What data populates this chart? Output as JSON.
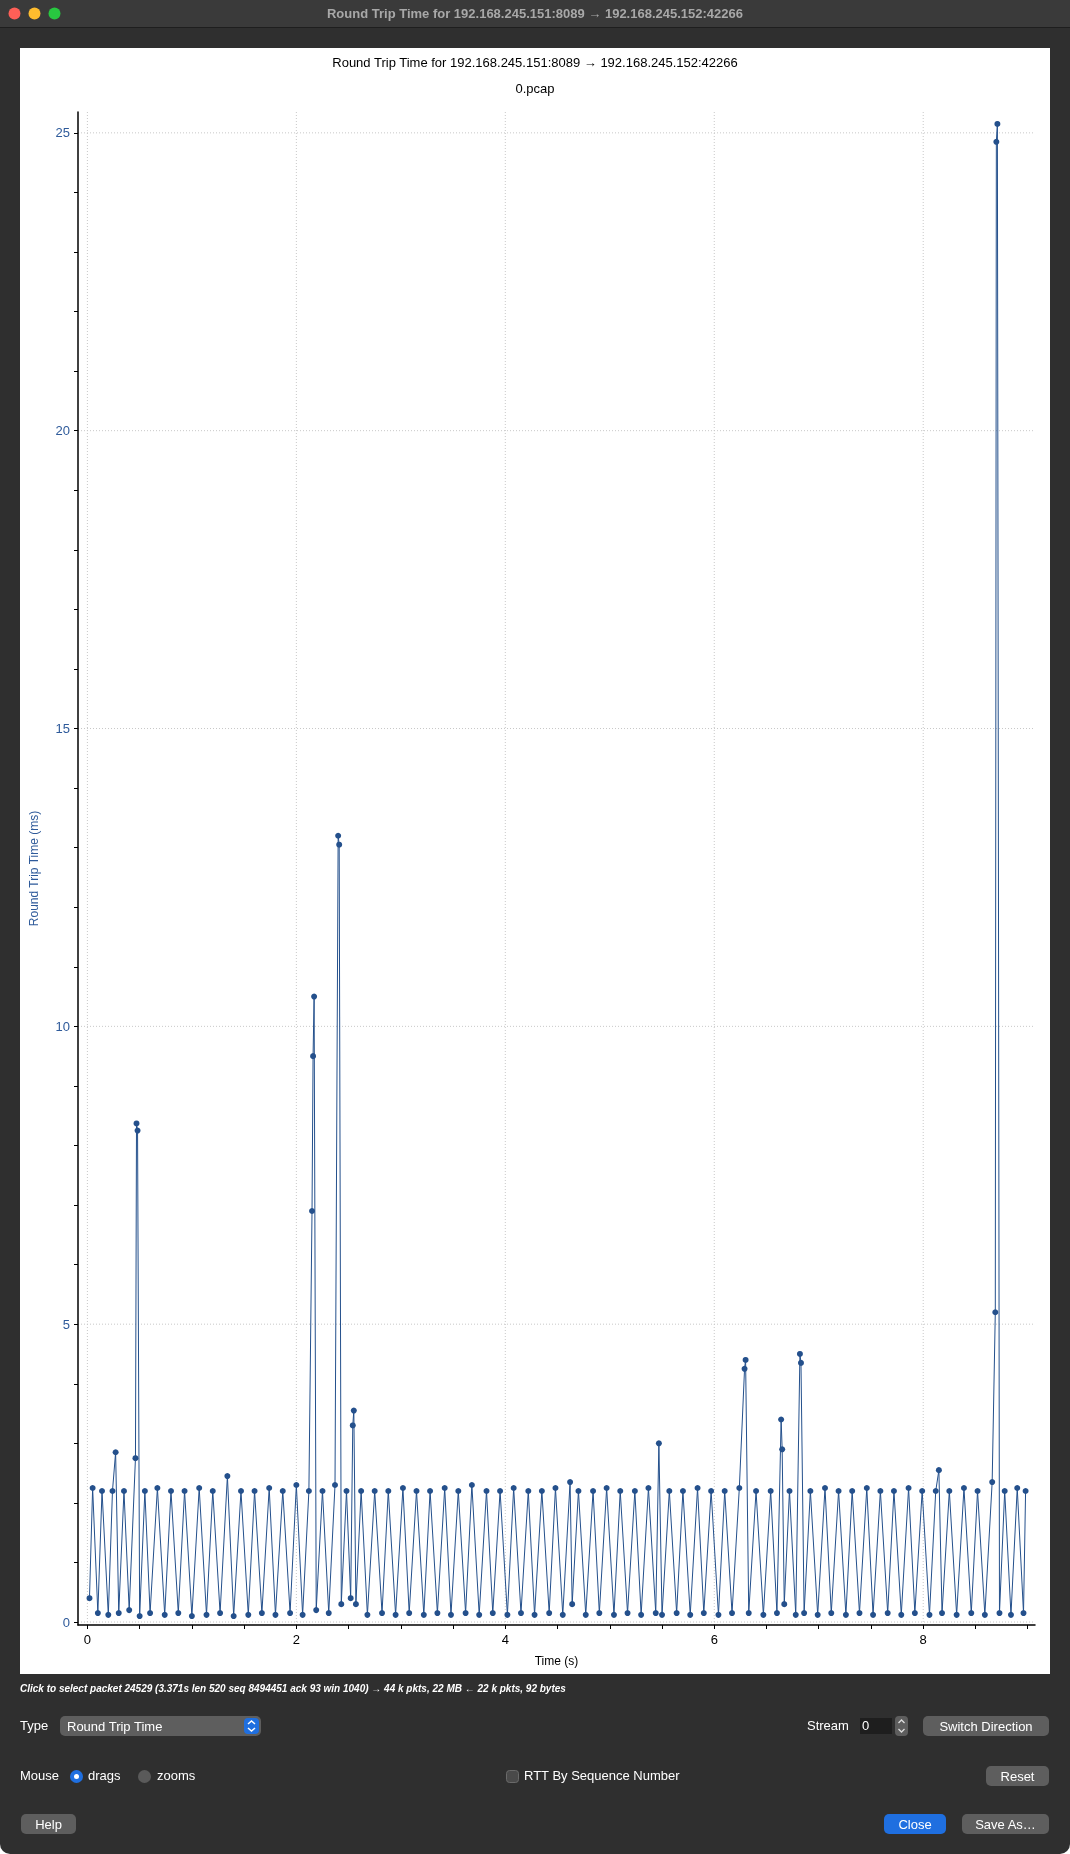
{
  "chart_data": [
    {
      "type": "line",
      "title": "Round Trip Time for 192.168.245.151:8089 → 192.168.245.152:42266",
      "subtitle": "0.pcap",
      "xlabel": "Time (s)",
      "ylabel": "Round Trip Time (ms)",
      "marker": "circle",
      "grid": true,
      "xlim": [
        -0.09,
        9.07
      ],
      "ylim": [
        -0.05,
        25.35
      ],
      "xticks": [
        0,
        {
          "value": 0.5,
          "label": null
        },
        {
          "value": 1,
          "label": null
        },
        {
          "value": 1.5,
          "label": null
        },
        2,
        {
          "value": 2.5,
          "label": null
        },
        {
          "value": 3,
          "label": null
        },
        {
          "value": 3.5,
          "label": null
        },
        4,
        {
          "value": 4.5,
          "label": null
        },
        {
          "value": 5,
          "label": null
        },
        {
          "value": 5.5,
          "label": null
        },
        6,
        {
          "value": 6.5,
          "label": null
        },
        {
          "value": 7,
          "label": null
        },
        {
          "value": 7.5,
          "label": null
        },
        8,
        {
          "value": 8.5,
          "label": null
        },
        {
          "value": 9,
          "label": null
        }
      ],
      "yticks": [
        0,
        {
          "value": 1,
          "label": null
        },
        {
          "value": 2,
          "label": null
        },
        {
          "value": 3,
          "label": null
        },
        {
          "value": 4,
          "label": null
        },
        5,
        {
          "value": 6,
          "label": null
        },
        {
          "value": 7,
          "label": null
        },
        {
          "value": 8,
          "label": null
        },
        {
          "value": 9,
          "label": null
        },
        10,
        {
          "value": 11,
          "label": null
        },
        {
          "value": 12,
          "label": null
        },
        {
          "value": 13,
          "label": null
        },
        {
          "value": 14,
          "label": null
        },
        15,
        {
          "value": 16,
          "label": null
        },
        {
          "value": 17,
          "label": null
        },
        {
          "value": 18,
          "label": null
        },
        {
          "value": 19,
          "label": null
        },
        20,
        {
          "value": 21,
          "label": null
        },
        {
          "value": 22,
          "label": null
        },
        {
          "value": 23,
          "label": null
        },
        {
          "value": 24,
          "label": null
        },
        25
      ],
      "series": [
        {
          "color": "#24508c",
          "x": [
            0.02,
            0.05,
            0.1,
            0.14,
            0.2,
            0.24,
            0.27,
            0.3,
            0.35,
            0.4,
            0.46,
            0.47,
            0.48,
            0.5,
            0.55,
            0.6,
            0.67,
            0.74,
            0.8,
            0.87,
            0.93,
            1.0,
            1.07,
            1.14,
            1.2,
            1.27,
            1.34,
            1.4,
            1.47,
            1.54,
            1.6,
            1.67,
            1.74,
            1.8,
            1.87,
            1.94,
            2.0,
            2.06,
            2.12,
            2.15,
            2.16,
            2.17,
            2.19,
            2.25,
            2.31,
            2.37,
            2.4,
            2.41,
            2.43,
            2.48,
            2.52,
            2.54,
            2.55,
            2.57,
            2.62,
            2.68,
            2.75,
            2.82,
            2.88,
            2.95,
            3.02,
            3.08,
            3.15,
            3.22,
            3.28,
            3.35,
            3.42,
            3.48,
            3.55,
            3.62,
            3.68,
            3.75,
            3.82,
            3.88,
            3.95,
            4.02,
            4.08,
            4.15,
            4.22,
            4.28,
            4.35,
            4.42,
            4.48,
            4.55,
            4.62,
            4.64,
            4.7,
            4.77,
            4.84,
            4.9,
            4.97,
            5.04,
            5.1,
            5.17,
            5.24,
            5.3,
            5.37,
            5.44,
            5.47,
            5.5,
            5.57,
            5.64,
            5.7,
            5.77,
            5.84,
            5.9,
            5.97,
            6.04,
            6.1,
            6.17,
            6.24,
            6.29,
            6.3,
            6.33,
            6.4,
            6.47,
            6.54,
            6.6,
            6.64,
            6.65,
            6.67,
            6.72,
            6.78,
            6.82,
            6.83,
            6.86,
            6.92,
            6.99,
            7.06,
            7.12,
            7.19,
            7.26,
            7.32,
            7.39,
            7.46,
            7.52,
            7.59,
            7.66,
            7.72,
            7.79,
            7.86,
            7.92,
            7.99,
            8.06,
            8.12,
            8.15,
            8.18,
            8.25,
            8.32,
            8.39,
            8.46,
            8.52,
            8.59,
            8.66,
            8.69,
            8.7,
            8.71,
            8.73,
            8.78,
            8.84,
            8.9,
            8.96,
            8.98
          ],
          "values": [
            0.4,
            2.25,
            0.15,
            2.2,
            0.12,
            2.2,
            2.85,
            0.15,
            2.2,
            0.2,
            2.75,
            8.37,
            8.25,
            0.1,
            2.2,
            0.15,
            2.25,
            0.12,
            2.2,
            0.15,
            2.2,
            0.1,
            2.25,
            0.12,
            2.2,
            0.15,
            2.45,
            0.1,
            2.2,
            0.12,
            2.2,
            0.15,
            2.25,
            0.12,
            2.2,
            0.15,
            2.3,
            0.12,
            2.2,
            6.9,
            9.5,
            10.5,
            0.2,
            2.2,
            0.15,
            2.3,
            13.2,
            13.05,
            0.3,
            2.2,
            0.4,
            3.3,
            3.55,
            0.3,
            2.2,
            0.12,
            2.2,
            0.15,
            2.2,
            0.12,
            2.25,
            0.15,
            2.2,
            0.12,
            2.2,
            0.15,
            2.25,
            0.12,
            2.2,
            0.15,
            2.3,
            0.12,
            2.2,
            0.15,
            2.2,
            0.12,
            2.25,
            0.15,
            2.2,
            0.12,
            2.2,
            0.15,
            2.25,
            0.12,
            2.35,
            0.3,
            2.2,
            0.12,
            2.2,
            0.15,
            2.25,
            0.12,
            2.2,
            0.15,
            2.2,
            0.12,
            2.25,
            0.15,
            3.0,
            0.12,
            2.2,
            0.15,
            2.2,
            0.12,
            2.25,
            0.15,
            2.2,
            0.12,
            2.2,
            0.15,
            2.25,
            4.25,
            4.4,
            0.15,
            2.2,
            0.12,
            2.2,
            0.15,
            3.4,
            2.9,
            0.3,
            2.2,
            0.12,
            4.5,
            4.35,
            0.15,
            2.2,
            0.12,
            2.25,
            0.15,
            2.2,
            0.12,
            2.2,
            0.15,
            2.25,
            0.12,
            2.2,
            0.15,
            2.2,
            0.12,
            2.25,
            0.15,
            2.2,
            0.12,
            2.2,
            2.55,
            0.15,
            2.2,
            0.12,
            2.25,
            0.15,
            2.2,
            0.12,
            2.35,
            5.2,
            24.85,
            25.15,
            0.15,
            2.2,
            0.12,
            2.25,
            0.15,
            2.2
          ]
        }
      ]
    },
    {
      "type": "other",
      "title": "Round Trip Time for 192.168.245.151:8089 → 192.168.245.152:42266",
      "annotations": [
        "Click to select packet 24529 (3.371s len 520 seq 8494451 ack 93 win 1040) → 44 k pkts, 22 MB ← 22 k pkts, 92 bytes",
        "Type",
        "Round Trip Time",
        "Stream",
        "0",
        "Switch Direction",
        "Mouse",
        "drags",
        "zooms",
        "RTT By Sequence Number",
        "Reset",
        "Help",
        "Close",
        "Save As…"
      ]
    }
  ]
}
